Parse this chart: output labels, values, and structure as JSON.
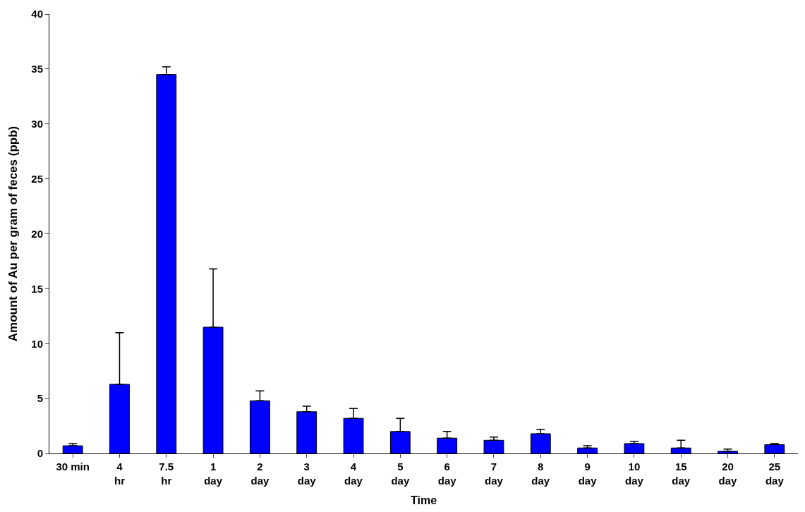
{
  "chart_data": {
    "type": "bar",
    "xlabel": "Time",
    "ylabel": "Amount of Au per gram of feces (ppb)",
    "categories": [
      "30 min",
      "4\nhr",
      "7.5\nhr",
      "1\nday",
      "2\nday",
      "3\nday",
      "4\nday",
      "5\nday",
      "6\nday",
      "7\nday",
      "8\nday",
      "9\nday",
      "10\nday",
      "15\nday",
      "20\nday",
      "25\nday"
    ],
    "values": [
      0.7,
      6.3,
      34.5,
      11.5,
      4.8,
      3.8,
      3.2,
      2.0,
      1.4,
      1.2,
      1.8,
      0.5,
      0.9,
      0.5,
      0.2,
      0.8
    ],
    "errors": [
      [
        0.7,
        0.9
      ],
      [
        6.3,
        11.0
      ],
      [
        34.5,
        35.2
      ],
      [
        11.5,
        16.8
      ],
      [
        4.8,
        5.7
      ],
      [
        3.8,
        4.3
      ],
      [
        3.2,
        4.1
      ],
      [
        2.0,
        3.2
      ],
      [
        1.4,
        2.0
      ],
      [
        1.2,
        1.5
      ],
      [
        1.8,
        2.2
      ],
      [
        0.5,
        0.7
      ],
      [
        0.9,
        1.1
      ],
      [
        0.5,
        1.2
      ],
      [
        0.2,
        0.4
      ],
      [
        0.8,
        0.9
      ]
    ],
    "color": "#0000ff",
    "ylim": [
      0,
      40
    ],
    "yticks": [
      0,
      5,
      10,
      15,
      20,
      25,
      30,
      35,
      40
    ],
    "legend": false
  }
}
